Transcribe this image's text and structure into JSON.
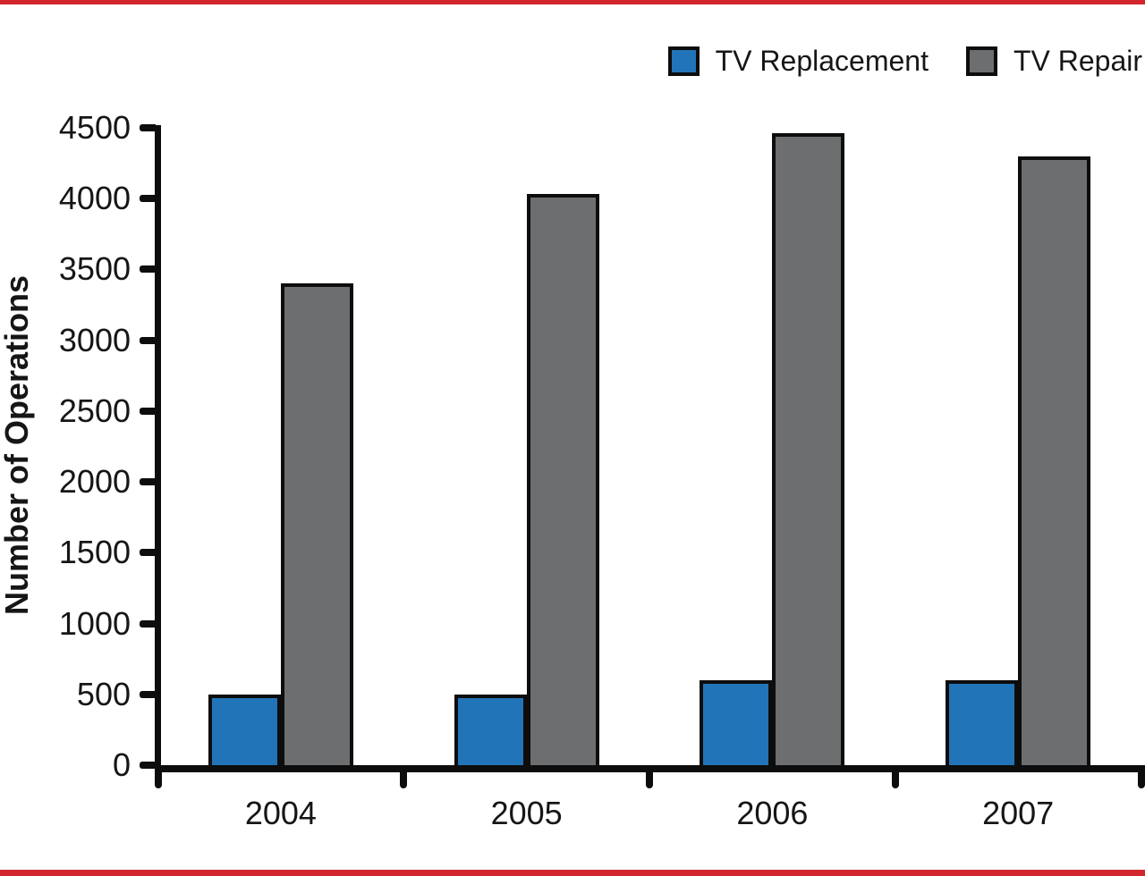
{
  "page": {
    "background": "#ffffff",
    "top_bar_color": "#d2262d",
    "bottom_bar_color": "#d2262d",
    "text_color": "#161616",
    "axis_color": "#0d0d0d"
  },
  "legend": {
    "items": [
      {
        "label": "TV Replacement",
        "color": "#2274b8"
      },
      {
        "label": "TV Repair",
        "color": "#6c6e70"
      }
    ]
  },
  "chart_data": {
    "type": "bar",
    "title": "",
    "categories": [
      "2004",
      "2005",
      "2006",
      "2007"
    ],
    "series": [
      {
        "name": "TV Replacement",
        "color": "#2274b8",
        "values": [
          500,
          500,
          600,
          600
        ]
      },
      {
        "name": "TV Repair",
        "color": "#6c6e70",
        "values": [
          3400,
          4030,
          4460,
          4300
        ]
      }
    ],
    "xlabel": "",
    "ylabel": "Number of Operations",
    "ylim": [
      0,
      4500
    ],
    "ytick_step": 500,
    "yticks": [
      0,
      500,
      1000,
      1500,
      2000,
      2500,
      3000,
      3500,
      4000,
      4500
    ],
    "grid": false,
    "legend_position": "top-right",
    "bar_outline_color": "#0d0d0d"
  }
}
